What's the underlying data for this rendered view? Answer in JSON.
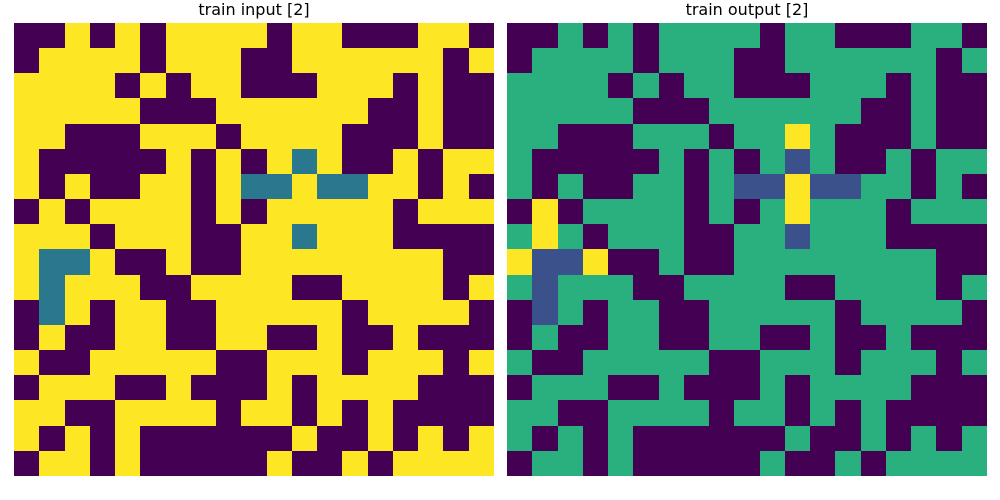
{
  "palette": {
    "0": "#440154",
    "1": "#fde725",
    "2": "#2a788e",
    "3": "#21918c",
    "4": "#2ab07f",
    "5": "#3b518b",
    "6": "#fde725"
  },
  "panels": [
    {
      "title": "train input [2]",
      "grid": [
        [
          0,
          0,
          1,
          0,
          1,
          0,
          1,
          1,
          1,
          1,
          0,
          1,
          1,
          0,
          0,
          0,
          1,
          1,
          0
        ],
        [
          0,
          1,
          1,
          1,
          1,
          0,
          1,
          1,
          1,
          0,
          0,
          1,
          1,
          1,
          1,
          1,
          1,
          0,
          1
        ],
        [
          1,
          1,
          1,
          1,
          0,
          1,
          0,
          1,
          1,
          0,
          0,
          0,
          1,
          1,
          1,
          0,
          1,
          0,
          0
        ],
        [
          1,
          1,
          1,
          1,
          1,
          0,
          0,
          0,
          1,
          1,
          1,
          1,
          1,
          1,
          0,
          0,
          1,
          0,
          0
        ],
        [
          1,
          1,
          0,
          0,
          0,
          1,
          1,
          1,
          0,
          1,
          1,
          1,
          1,
          0,
          0,
          0,
          1,
          0,
          0
        ],
        [
          1,
          0,
          0,
          0,
          0,
          0,
          1,
          0,
          1,
          0,
          1,
          2,
          1,
          0,
          0,
          1,
          0,
          1,
          1
        ],
        [
          1,
          0,
          1,
          0,
          0,
          1,
          1,
          0,
          1,
          2,
          2,
          1,
          2,
          2,
          1,
          1,
          0,
          1,
          0
        ],
        [
          0,
          1,
          0,
          1,
          1,
          1,
          1,
          0,
          1,
          0,
          1,
          1,
          1,
          1,
          1,
          0,
          1,
          1,
          1
        ],
        [
          1,
          1,
          1,
          0,
          1,
          1,
          1,
          0,
          0,
          1,
          1,
          2,
          1,
          1,
          1,
          0,
          0,
          0,
          0
        ],
        [
          1,
          2,
          2,
          1,
          0,
          0,
          1,
          0,
          0,
          1,
          1,
          1,
          1,
          1,
          1,
          1,
          1,
          0,
          0
        ],
        [
          1,
          2,
          1,
          1,
          1,
          0,
          0,
          1,
          1,
          1,
          1,
          0,
          0,
          1,
          1,
          1,
          1,
          0,
          1
        ],
        [
          0,
          2,
          1,
          0,
          1,
          1,
          0,
          0,
          1,
          1,
          1,
          1,
          1,
          0,
          1,
          1,
          1,
          1,
          0
        ],
        [
          0,
          1,
          0,
          0,
          1,
          1,
          0,
          0,
          1,
          1,
          0,
          0,
          1,
          0,
          0,
          1,
          0,
          0,
          0
        ],
        [
          1,
          0,
          0,
          1,
          1,
          1,
          1,
          1,
          0,
          0,
          1,
          1,
          1,
          0,
          1,
          1,
          1,
          0,
          1
        ],
        [
          0,
          1,
          1,
          1,
          0,
          0,
          1,
          0,
          0,
          0,
          1,
          0,
          1,
          1,
          1,
          1,
          0,
          0,
          0
        ],
        [
          1,
          1,
          0,
          0,
          1,
          1,
          1,
          1,
          0,
          1,
          1,
          0,
          1,
          0,
          1,
          0,
          0,
          0,
          0
        ],
        [
          1,
          0,
          1,
          0,
          1,
          0,
          0,
          0,
          0,
          0,
          0,
          1,
          0,
          0,
          1,
          0,
          1,
          0,
          1
        ],
        [
          0,
          1,
          1,
          0,
          1,
          0,
          0,
          0,
          0,
          0,
          1,
          0,
          0,
          1,
          0,
          1,
          1,
          1,
          1
        ]
      ]
    },
    {
      "title": "train output [2]",
      "grid": [
        [
          0,
          0,
          4,
          0,
          4,
          0,
          4,
          4,
          4,
          4,
          0,
          4,
          4,
          0,
          0,
          0,
          4,
          4,
          0
        ],
        [
          0,
          4,
          4,
          4,
          4,
          0,
          4,
          4,
          4,
          0,
          0,
          4,
          4,
          4,
          4,
          4,
          4,
          0,
          4
        ],
        [
          4,
          4,
          4,
          4,
          0,
          4,
          0,
          4,
          4,
          0,
          0,
          0,
          4,
          4,
          4,
          0,
          4,
          0,
          0
        ],
        [
          4,
          4,
          4,
          4,
          4,
          0,
          0,
          0,
          4,
          4,
          4,
          4,
          4,
          4,
          0,
          0,
          4,
          0,
          0
        ],
        [
          4,
          4,
          0,
          0,
          0,
          4,
          4,
          4,
          0,
          4,
          4,
          6,
          4,
          0,
          0,
          0,
          4,
          0,
          0
        ],
        [
          4,
          0,
          0,
          0,
          0,
          0,
          4,
          0,
          4,
          0,
          4,
          5,
          4,
          0,
          0,
          4,
          0,
          4,
          4
        ],
        [
          4,
          0,
          4,
          0,
          0,
          4,
          4,
          0,
          4,
          5,
          5,
          6,
          5,
          5,
          4,
          4,
          0,
          4,
          0
        ],
        [
          0,
          6,
          0,
          4,
          4,
          4,
          4,
          0,
          4,
          0,
          4,
          6,
          4,
          4,
          4,
          0,
          4,
          4,
          4
        ],
        [
          4,
          6,
          4,
          0,
          4,
          4,
          4,
          0,
          0,
          4,
          4,
          5,
          4,
          4,
          4,
          0,
          0,
          0,
          0
        ],
        [
          6,
          5,
          5,
          6,
          0,
          0,
          4,
          0,
          0,
          4,
          4,
          4,
          4,
          4,
          4,
          4,
          4,
          0,
          0
        ],
        [
          4,
          5,
          4,
          4,
          4,
          0,
          0,
          4,
          4,
          4,
          4,
          0,
          0,
          4,
          4,
          4,
          4,
          0,
          4
        ],
        [
          0,
          5,
          4,
          0,
          4,
          4,
          0,
          0,
          4,
          4,
          4,
          4,
          4,
          0,
          4,
          4,
          4,
          4,
          0
        ],
        [
          0,
          4,
          0,
          0,
          4,
          4,
          0,
          0,
          4,
          4,
          0,
          0,
          4,
          0,
          0,
          4,
          0,
          0,
          0
        ],
        [
          4,
          0,
          0,
          4,
          4,
          4,
          4,
          4,
          0,
          0,
          4,
          4,
          4,
          0,
          4,
          4,
          4,
          0,
          4
        ],
        [
          0,
          4,
          4,
          4,
          0,
          0,
          4,
          0,
          0,
          0,
          4,
          0,
          4,
          4,
          4,
          4,
          0,
          0,
          0
        ],
        [
          4,
          4,
          0,
          0,
          4,
          4,
          4,
          4,
          0,
          4,
          4,
          0,
          4,
          0,
          4,
          0,
          0,
          0,
          0
        ],
        [
          4,
          0,
          4,
          0,
          4,
          0,
          0,
          0,
          0,
          0,
          0,
          4,
          0,
          0,
          4,
          0,
          4,
          0,
          4
        ],
        [
          0,
          4,
          4,
          0,
          4,
          0,
          0,
          0,
          0,
          0,
          4,
          0,
          0,
          4,
          0,
          4,
          4,
          4,
          4
        ]
      ]
    }
  ]
}
